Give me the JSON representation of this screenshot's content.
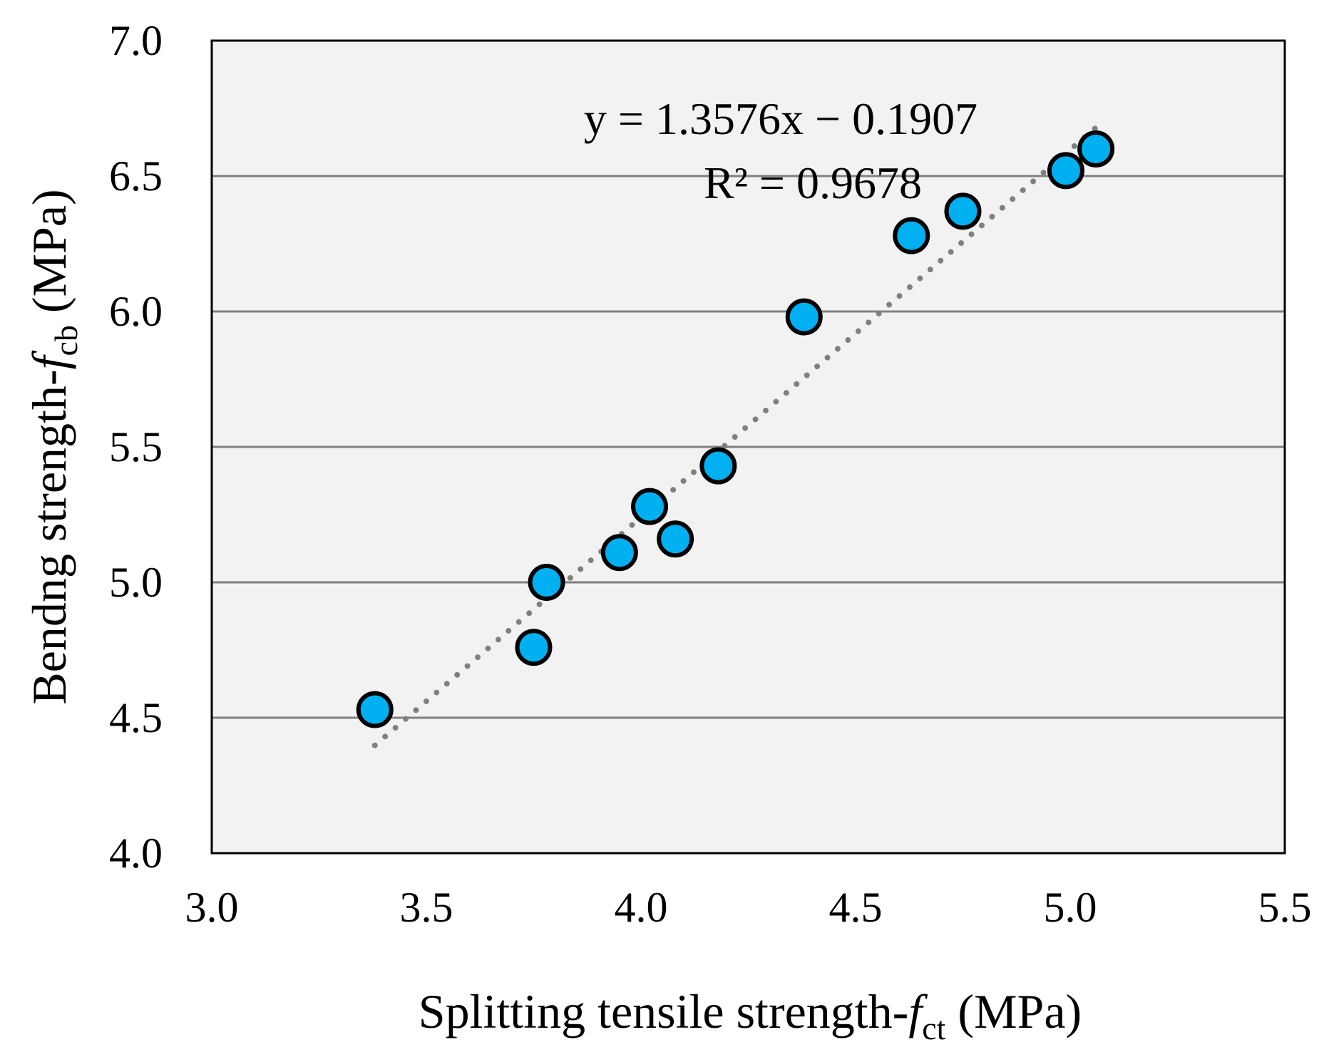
{
  "chart_data": {
    "type": "scatter",
    "xlabel": {
      "prefix": "Splitting tensile strength-",
      "var": "f",
      "sub": "ct",
      "suffix": " (MPa)"
    },
    "ylabel": {
      "prefix": "Bendng strength-",
      "var": "f",
      "sub": "cb",
      "suffix": " (MPa)"
    },
    "xlim": [
      3.0,
      5.5
    ],
    "ylim": [
      4.0,
      7.0
    ],
    "xticks": [
      3.0,
      3.5,
      4.0,
      4.5,
      5.0,
      5.5
    ],
    "yticks": [
      4.0,
      4.5,
      5.0,
      5.5,
      6.0,
      6.5,
      7.0
    ],
    "xtick_labels": [
      "3.0",
      "3.5",
      "4.0",
      "4.5",
      "5.0",
      "5.5"
    ],
    "ytick_labels": [
      "4.0",
      "4.5",
      "5.0",
      "5.5",
      "6.0",
      "6.5",
      "7.0"
    ],
    "gridlines": "horizontal",
    "series": [
      {
        "name": "data",
        "points": [
          {
            "x": 3.38,
            "y": 4.53
          },
          {
            "x": 3.75,
            "y": 4.76
          },
          {
            "x": 3.78,
            "y": 5.0
          },
          {
            "x": 3.95,
            "y": 5.11
          },
          {
            "x": 4.02,
            "y": 5.28
          },
          {
            "x": 4.08,
            "y": 5.16
          },
          {
            "x": 4.18,
            "y": 5.43
          },
          {
            "x": 4.38,
            "y": 5.98
          },
          {
            "x": 4.63,
            "y": 6.28
          },
          {
            "x": 4.75,
            "y": 6.37
          },
          {
            "x": 4.99,
            "y": 6.52
          },
          {
            "x": 5.06,
            "y": 6.6
          }
        ]
      }
    ],
    "trendline": {
      "slope": 1.3576,
      "intercept": -0.1907,
      "x_range": [
        3.38,
        5.06
      ],
      "style": "dotted"
    },
    "annotations": {
      "equation": "y = 1.3576x − 0.1907",
      "r_squared": "R² = 0.9678"
    },
    "colors": {
      "marker_fill": "#00b0f0",
      "marker_edge": "#000000",
      "plot_bg": "#f2f2f2",
      "grid": "#808080",
      "trendline": "#808080"
    }
  }
}
